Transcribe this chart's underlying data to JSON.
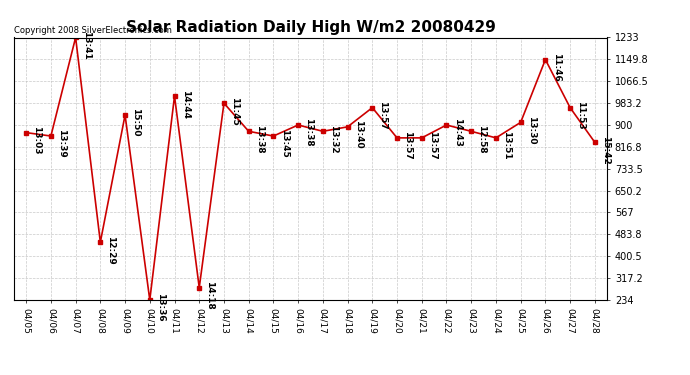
{
  "title": "Solar Radiation Daily High W/m2 20080429",
  "copyright": "Copyright 2008 SilverElectronics.com",
  "dates": [
    "04/05",
    "04/06",
    "04/07",
    "04/08",
    "04/09",
    "04/10",
    "04/11",
    "04/12",
    "04/13",
    "04/14",
    "04/15",
    "04/16",
    "04/17",
    "04/18",
    "04/19",
    "04/20",
    "04/21",
    "04/22",
    "04/23",
    "04/24",
    "04/25",
    "04/26",
    "04/27",
    "04/28"
  ],
  "values": [
    871,
    858,
    1233,
    454,
    938,
    234,
    1010,
    281,
    983,
    876,
    858,
    900,
    876,
    893,
    966,
    851,
    851,
    900,
    876,
    851,
    910,
    1149,
    966,
    834
  ],
  "times": [
    "13:03",
    "13:39",
    "13:41",
    "12:29",
    "15:50",
    "13:36",
    "14:44",
    "14:18",
    "11:45",
    "13:38",
    "13:45",
    "13:38",
    "13:32",
    "13:40",
    "13:57",
    "13:57",
    "13:57",
    "14:43",
    "12:58",
    "13:51",
    "13:30",
    "11:46",
    "11:53",
    "15:42"
  ],
  "line_color": "#cc0000",
  "marker_color": "#cc0000",
  "bg_color": "#ffffff",
  "plot_bg_color": "#ffffff",
  "grid_color": "#bbbbbb",
  "ymin": 234.0,
  "ymax": 1233.0,
  "yticks": [
    234.0,
    317.2,
    400.5,
    483.8,
    567.0,
    650.2,
    733.5,
    816.8,
    900.0,
    983.2,
    1066.5,
    1149.8,
    1233.0
  ],
  "title_fontsize": 11,
  "annotation_fontsize": 6.5,
  "copyright_fontsize": 6
}
